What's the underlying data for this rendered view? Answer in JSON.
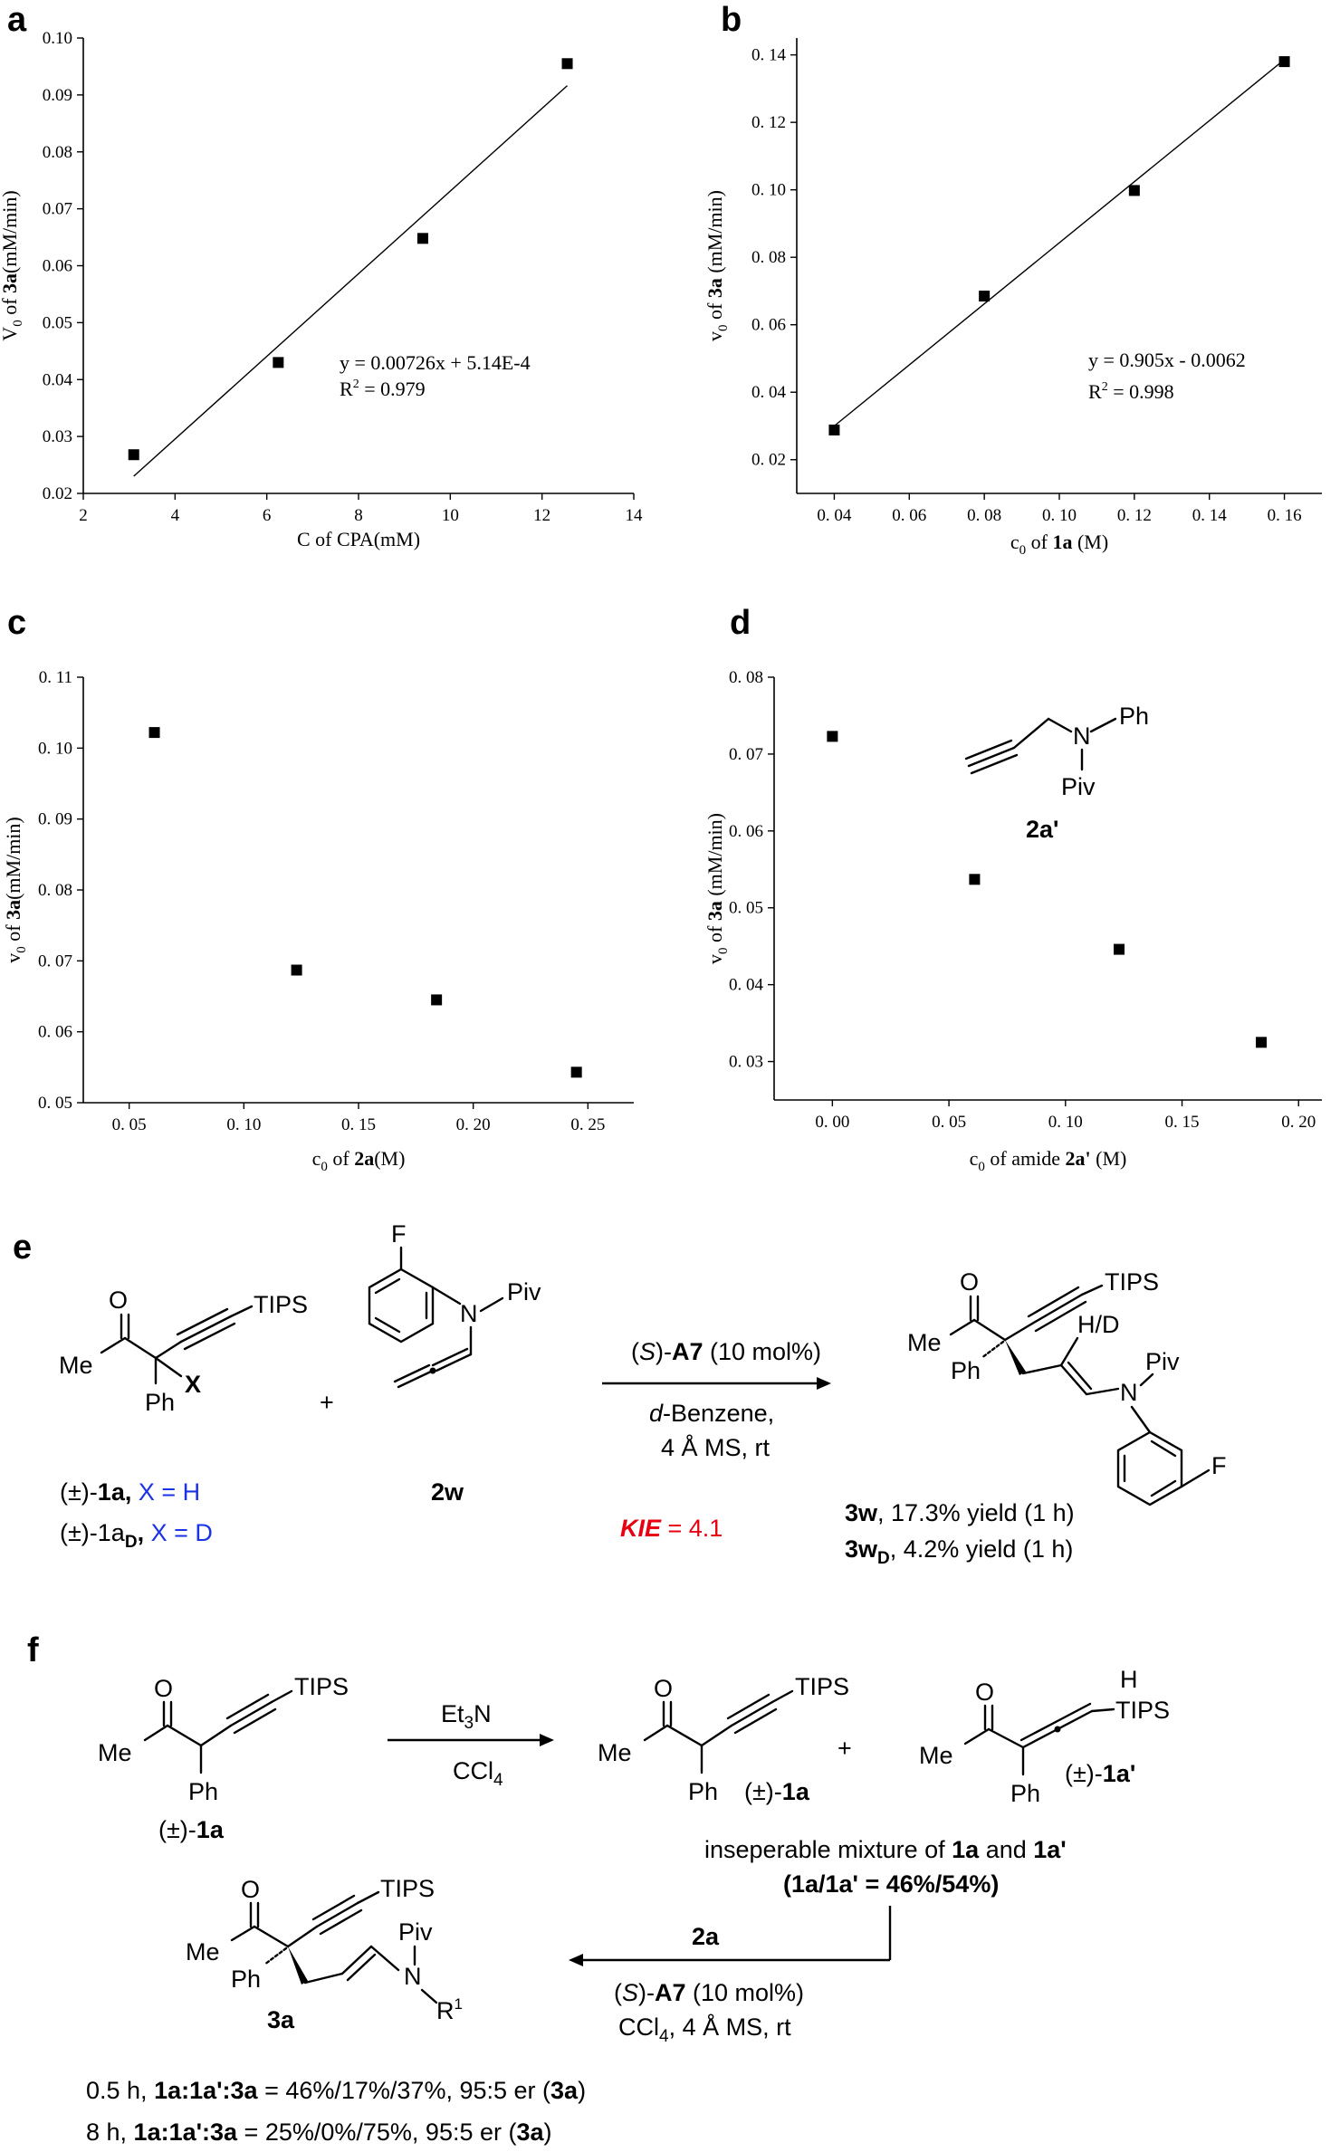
{
  "colors": {
    "axis": "#000000",
    "marker": "#000000",
    "blue": "#1a33e6",
    "red": "#e60012"
  },
  "panels": {
    "a": {
      "letter": "a",
      "eq_line1": "y = 0.00726x + 5.14E-4",
      "eq_line2_prefix": "R",
      "eq_line2_sup": "2",
      "eq_line2_suffix": " = 0.979"
    },
    "b": {
      "letter": "b",
      "eq_line1": "y = 0.905x - 0.0062",
      "eq_line2_prefix": "R",
      "eq_line2_sup": "2",
      "eq_line2_suffix": " = 0.998"
    },
    "c": {
      "letter": "c"
    },
    "d": {
      "letter": "d",
      "inset_label": "2a'",
      "inset_ph": "Ph",
      "inset_n": "N",
      "inset_piv": "Piv"
    }
  },
  "chart_data": [
    {
      "id": "a",
      "type": "scatter",
      "x": [
        3.1,
        6.25,
        9.4,
        12.55
      ],
      "y": [
        0.0268,
        0.043,
        0.0648,
        0.0955
      ],
      "fit": {
        "slope": 0.00726,
        "intercept": 0.000514,
        "x_range": [
          3.1,
          12.55
        ]
      },
      "xlabel": "C of CPA(mM)",
      "ylabel_parts": [
        "V",
        "0",
        " of ",
        "3a",
        "(mM/min)"
      ],
      "xlim": [
        2,
        14
      ],
      "ylim": [
        0.02,
        0.1
      ],
      "xticks": [
        "2",
        "4",
        "6",
        "8",
        "10",
        "12",
        "14"
      ],
      "yticks": [
        "0.02",
        "0.03",
        "0.04",
        "0.05",
        "0.06",
        "0.07",
        "0.08",
        "0.09",
        "0.10"
      ],
      "grid": false
    },
    {
      "id": "b",
      "type": "scatter",
      "x": [
        0.04,
        0.08,
        0.12,
        0.16
      ],
      "y": [
        0.0288,
        0.0685,
        0.0998,
        0.138
      ],
      "fit": {
        "slope": 0.905,
        "intercept": -0.0062,
        "x_range": [
          0.04,
          0.16
        ]
      },
      "xlabel_parts": [
        "c",
        "0",
        " of ",
        "1a",
        " (M)"
      ],
      "ylabel_parts": [
        "v",
        "0",
        " of ",
        "3a",
        " (mM/min)"
      ],
      "xlim": [
        0.03,
        0.17
      ],
      "ylim": [
        0.01,
        0.145
      ],
      "xticks": [
        "0. 04",
        "0. 06",
        "0. 08",
        "0. 10",
        "0. 12",
        "0. 14",
        "0. 16"
      ],
      "xtick_values": [
        0.04,
        0.06,
        0.08,
        0.1,
        0.12,
        0.14,
        0.16
      ],
      "yticks": [
        "0. 02",
        "0. 04",
        "0. 06",
        "0. 08",
        "0. 10",
        "0. 12",
        "0. 14"
      ],
      "ytick_values": [
        0.02,
        0.04,
        0.06,
        0.08,
        0.1,
        0.12,
        0.14
      ],
      "grid": false
    },
    {
      "id": "c",
      "type": "scatter",
      "x": [
        0.061,
        0.123,
        0.184,
        0.245
      ],
      "y": [
        0.1022,
        0.0687,
        0.0645,
        0.0543
      ],
      "xlabel_parts": [
        "c",
        "0",
        " of ",
        "2a",
        "(M)"
      ],
      "ylabel_parts": [
        "v",
        "0",
        " of ",
        "3a",
        "(mM/min)"
      ],
      "xlim": [
        0.03,
        0.27
      ],
      "ylim": [
        0.05,
        0.11
      ],
      "xticks": [
        "0. 05",
        "0. 10",
        "0. 15",
        "0. 20",
        "0. 25"
      ],
      "xtick_values": [
        0.05,
        0.1,
        0.15,
        0.2,
        0.25
      ],
      "yticks": [
        "0. 05",
        "0. 06",
        "0. 07",
        "0. 08",
        "0. 09",
        "0. 10",
        "0. 11"
      ],
      "ytick_values": [
        0.05,
        0.06,
        0.07,
        0.08,
        0.09,
        0.1,
        0.11
      ],
      "grid": false
    },
    {
      "id": "d",
      "type": "scatter",
      "x": [
        0.0,
        0.061,
        0.123,
        0.184
      ],
      "y": [
        0.0723,
        0.0537,
        0.0446,
        0.0325
      ],
      "xlabel_parts": [
        "c",
        "0",
        " of amide ",
        "2a'",
        " (M)"
      ],
      "ylabel_parts": [
        "v",
        "0",
        " of  ",
        "3a",
        " (mM/min)"
      ],
      "xlim": [
        -0.025,
        0.21
      ],
      "ylim": [
        0.025,
        0.08
      ],
      "xticks": [
        "0. 00",
        "0. 05",
        "0. 10",
        "0. 15",
        "0. 20"
      ],
      "xtick_values": [
        0.0,
        0.05,
        0.1,
        0.15,
        0.2
      ],
      "yticks": [
        "0. 03",
        "0. 04",
        "0. 05",
        "0. 06",
        "0. 07",
        "0. 08"
      ],
      "ytick_values": [
        0.03,
        0.04,
        0.05,
        0.06,
        0.07,
        0.08
      ],
      "grid": false
    }
  ],
  "scheme_e": {
    "letter": "e",
    "conditions_top_pre": "(",
    "conditions_top_s": "S",
    "conditions_top_mid": ")-",
    "conditions_top_cat": "A7",
    "conditions_top_post": " (10 mol%)",
    "conditions_bottom_1_it": "d",
    "conditions_bottom_1": "-Benzene,",
    "conditions_bottom_2": "4 Å MS, rt",
    "kie_label": "KIE",
    "kie_value": " = 4.1",
    "plus": "+",
    "sm1_line1_pre": "(±)-",
    "sm1_line1_bold": "1a,",
    "sm1_line1_blue": " X = H",
    "sm1_line2_pre": "(±)-1a",
    "sm1_line2_sub": "D",
    "sm1_line2_bold": ",",
    "sm1_line2_blue": " X = D",
    "sm2_label": "2w",
    "prod_line1_bold": "3w",
    "prod_line1": ", 17.3% yield (1 h)",
    "prod_line2_bold": "3w",
    "prod_line2_sub": "D",
    "prod_line2": ", 4.2% yield (1 h)",
    "atoms": {
      "me": "Me",
      "o": "O",
      "ph": "Ph",
      "x": "X",
      "tips": "TIPS",
      "f": "F",
      "n": "N",
      "piv": "Piv",
      "hd": "H/D"
    }
  },
  "scheme_f": {
    "letter": "f",
    "reagent_top_pre": "Et",
    "reagent_top_sub": "3",
    "reagent_top_post": "N",
    "reagent_bottom_pre": "CCl",
    "reagent_bottom_sub": "4",
    "plus": "+",
    "sm_label_pre": "(±)-",
    "sm_label_bold": "1a",
    "p1_label_pre": "(±)-",
    "p1_label_bold": "1a",
    "p2_label_pre": "(±)-",
    "p2_label_bold": "1a'",
    "mixture_pre": "inseperable mixture of ",
    "mixture_b1": "1a",
    "mixture_mid": " and ",
    "mixture_b2": "1a'",
    "ratio": "(1a/1a' = 46%/54%)",
    "step2_top": "2a",
    "step2_mid_pre": "(",
    "step2_mid_s": "S",
    "step2_mid_post": ")-",
    "step2_mid_cat": "A7",
    "step2_mid_end": " (10 mol%)",
    "step2_bot_pre": "CCl",
    "step2_bot_sub": "4",
    "step2_bot_post": ", 4 Å MS, rt",
    "product_label": "3a",
    "result1_pre": "0.5 h, ",
    "result1_bold": "1a:1a':3a",
    "result1_mid": " = 46%/17%/37%, 95:5 er (",
    "result1_b2": "3a",
    "result1_end": ")",
    "result2_pre": "8 h, ",
    "result2_bold": "1a:1a':3a",
    "result2_mid": " = 25%/0%/75%, 95:5 er (",
    "result2_b2": "3a",
    "result2_end": ")",
    "atoms": {
      "me": "Me",
      "o": "O",
      "ph": "Ph",
      "tips": "TIPS",
      "h": "H",
      "n": "N",
      "piv": "Piv",
      "r1": "R",
      "r1_sup": "1"
    }
  }
}
